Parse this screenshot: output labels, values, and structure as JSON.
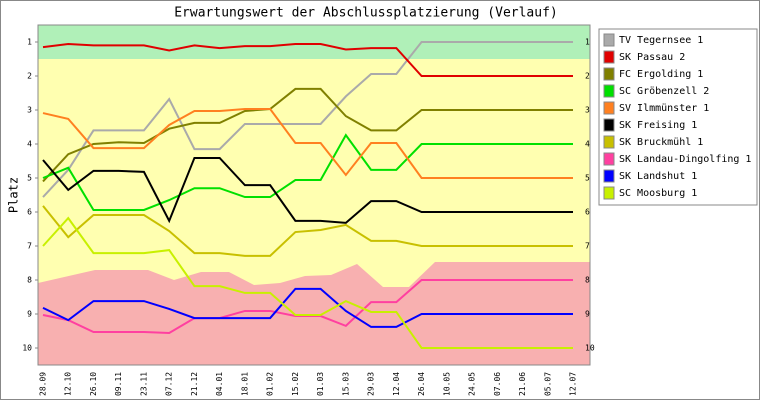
{
  "chart_data": {
    "type": "line",
    "title": "Erwartungswert der Abschlussplatzierung (Verlauf)",
    "y_label": "Platz",
    "categories": [
      "28.09",
      "12.10",
      "26.10",
      "09.11",
      "23.11",
      "07.12",
      "21.12",
      "04.01",
      "18.01",
      "01.02",
      "15.02",
      "01.03",
      "15.03",
      "29.03",
      "12.04",
      "26.04",
      "10.05",
      "24.05",
      "07.06",
      "21.06",
      "05.07",
      "12.07"
    ],
    "ylim": [
      0.5,
      10.5
    ],
    "y_inverted": true,
    "yticks": [
      1,
      2,
      3,
      4,
      5,
      6,
      7,
      8,
      9,
      10
    ],
    "grid": false,
    "legend": "right",
    "series": [
      {
        "name": "TV Tegernsee 1",
        "color": "#aaaaaa",
        "values": [
          5.56,
          4.76,
          3.6,
          3.6,
          3.6,
          2.68,
          4.15,
          4.15,
          3.41,
          3.41,
          3.41,
          3.41,
          2.6,
          1.94,
          1.94,
          1,
          1,
          1,
          1,
          1,
          1,
          1
        ]
      },
      {
        "name": "SK Passau 2",
        "color": "#e00000",
        "values": [
          1.15,
          1.06,
          1.1,
          1.1,
          1.1,
          1.25,
          1.1,
          1.18,
          1.12,
          1.12,
          1.06,
          1.06,
          1.22,
          1.18,
          1.18,
          2,
          2,
          2,
          2,
          2,
          2,
          2
        ]
      },
      {
        "name": "FC Ergolding 1",
        "color": "#808000",
        "values": [
          5.1,
          4.3,
          4.0,
          3.95,
          3.97,
          3.55,
          3.38,
          3.38,
          3.03,
          2.97,
          2.38,
          2.38,
          3.18,
          3.6,
          3.6,
          3,
          3,
          3,
          3,
          3,
          3,
          3
        ]
      },
      {
        "name": "SC Gröbenzell 2",
        "color": "#00e000",
        "values": [
          5.0,
          4.7,
          5.94,
          5.94,
          5.94,
          5.65,
          5.3,
          5.3,
          5.56,
          5.56,
          5.06,
          5.06,
          3.74,
          4.76,
          4.76,
          4,
          4,
          4,
          4,
          4,
          4,
          4
        ]
      },
      {
        "name": "SV Ilmmünster 1",
        "color": "#ff8020",
        "values": [
          3.09,
          3.26,
          4.12,
          4.12,
          4.12,
          3.44,
          3.03,
          3.03,
          2.97,
          2.97,
          3.97,
          3.97,
          4.91,
          3.97,
          3.97,
          5,
          5,
          5,
          5,
          5,
          5,
          5
        ]
      },
      {
        "name": "SK Freising 1",
        "color": "#000000",
        "values": [
          4.47,
          5.35,
          4.79,
          4.79,
          4.82,
          6.26,
          4.41,
          4.41,
          5.21,
          5.21,
          6.26,
          6.26,
          6.32,
          5.68,
          5.68,
          6,
          6,
          6,
          6,
          6,
          6,
          6
        ]
      },
      {
        "name": "SK Bruckmühl 1",
        "color": "#c8c000",
        "values": [
          5.82,
          6.74,
          6.09,
          6.09,
          6.09,
          6.56,
          7.21,
          7.21,
          7.29,
          7.29,
          6.59,
          6.53,
          6.38,
          6.85,
          6.85,
          7,
          7,
          7,
          7,
          7,
          7,
          7
        ]
      },
      {
        "name": "SK Landau-Dingolfing 1",
        "color": "#ff40a0",
        "values": [
          9.03,
          9.18,
          9.53,
          9.53,
          9.53,
          9.56,
          9.12,
          9.12,
          8.91,
          8.91,
          9.06,
          9.06,
          9.35,
          8.65,
          8.65,
          8,
          8,
          8,
          8,
          8,
          8,
          8
        ]
      },
      {
        "name": "SK Landshut 1",
        "color": "#0000ff",
        "values": [
          8.82,
          9.18,
          8.62,
          8.62,
          8.62,
          8.85,
          9.12,
          9.12,
          9.12,
          9.12,
          8.26,
          8.26,
          8.91,
          9.38,
          9.38,
          9,
          9,
          9,
          9,
          9,
          9,
          9
        ]
      },
      {
        "name": "SC Moosburg 1",
        "color": "#c8f000",
        "values": [
          7.0,
          6.18,
          7.21,
          7.21,
          7.21,
          7.12,
          8.18,
          8.18,
          8.38,
          8.38,
          9.03,
          9.03,
          8.62,
          8.94,
          8.94,
          10,
          10,
          10,
          10,
          10,
          10,
          10
        ]
      }
    ]
  }
}
